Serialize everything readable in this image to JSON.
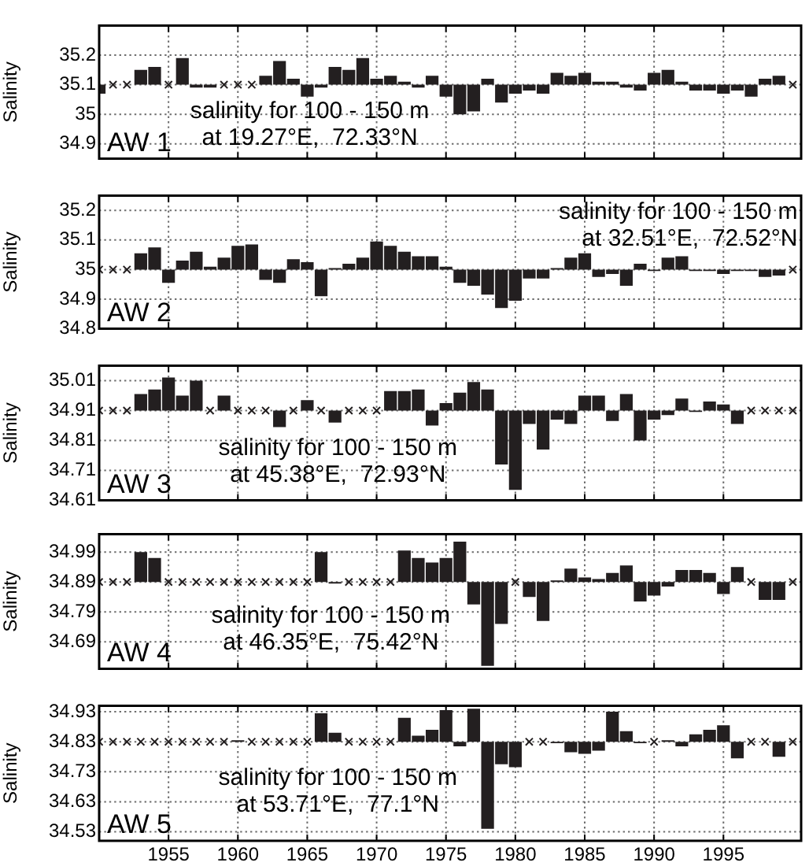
{
  "chart_data": [
    {
      "type": "bar",
      "ylabel": "Salinity",
      "xlim": [
        1950,
        2000.6
      ],
      "xticks": [
        1955,
        1960,
        1965,
        1970,
        1975,
        1980,
        1985,
        1990,
        1995
      ],
      "ylim": [
        34.85,
        35.3
      ],
      "yticks": [
        34.9,
        35,
        35.1,
        35.2
      ],
      "grid": true,
      "tick_labels": "y",
      "annotations": [
        "salinity for 100 - 150 m\nat 19.27°E,  72.33°N",
        "AW 1"
      ],
      "series": [
        {
          "color": "#231f20",
          "x": [
            1950,
            1953,
            1954,
            1956,
            1957,
            1958,
            1962,
            1963,
            1964,
            1965,
            1966,
            1967,
            1968,
            1969,
            1970,
            1971,
            1972,
            1973,
            1974,
            1975,
            1976,
            1977,
            1978,
            1979,
            1980,
            1981,
            1982,
            1983,
            1984,
            1985,
            1986,
            1987,
            1988,
            1989,
            1990,
            1991,
            1992,
            1993,
            1994,
            1995,
            1996,
            1997,
            1998,
            1999
          ],
          "base": [
            35.1,
            35.1,
            35.1,
            35.1,
            35.1,
            35.1,
            35.1,
            35.1,
            35.1,
            35.1,
            35.1,
            35.1,
            35.1,
            35.1,
            35.1,
            35.1,
            35.1,
            35.1,
            35.1,
            35.1,
            35.1,
            35.1,
            35.1,
            35.1,
            35.1,
            35.1,
            35.1,
            35.1,
            35.1,
            35.1,
            35.1,
            35.1,
            35.1,
            35.1,
            35.1,
            35.1,
            35.1,
            35.1,
            35.1,
            35.1,
            35.1,
            35.1,
            35.1,
            35.1
          ],
          "values": [
            -0.03,
            0.05,
            0.06,
            0.09,
            -0.01,
            -0.01,
            0.03,
            0.08,
            0.02,
            -0.04,
            -0.01,
            0.06,
            0.05,
            0.09,
            0.02,
            0.03,
            0.01,
            -0.01,
            0.03,
            -0.04,
            -0.1,
            -0.09,
            0.02,
            -0.06,
            -0.03,
            -0.02,
            -0.03,
            0.04,
            0.03,
            0.04,
            0.01,
            0.01,
            -0.01,
            -0.02,
            0.04,
            0.05,
            0.01,
            -0.02,
            -0.02,
            -0.03,
            -0.02,
            -0.04,
            0.02,
            0.03
          ]
        },
        {
          "type": "scatter",
          "color": "#231f20",
          "marker": "cross",
          "x": [
            1951,
            1952,
            1955,
            1959,
            1960,
            1961,
            2000
          ],
          "values": [
            35.1,
            35.1,
            35.1,
            35.1,
            35.1,
            35.1,
            35.1
          ]
        }
      ]
    },
    {
      "type": "bar",
      "ylabel": "Salinity",
      "xlim": [
        1950,
        2000.6
      ],
      "xticks": [
        1955,
        1960,
        1965,
        1970,
        1975,
        1980,
        1985,
        1990,
        1995
      ],
      "ylim": [
        34.8,
        35.25
      ],
      "yticks": [
        34.8,
        34.9,
        35,
        35.1,
        35.2
      ],
      "grid": true,
      "tick_labels": "y",
      "annotations": [
        "salinity for 100 - 150 m\nat 32.51°E,  72.52°N",
        "AW 2"
      ],
      "series": [
        {
          "color": "#231f20",
          "x": [
            1953,
            1954,
            1955,
            1956,
            1957,
            1958,
            1959,
            1960,
            1961,
            1962,
            1963,
            1964,
            1965,
            1966,
            1967,
            1968,
            1969,
            1970,
            1971,
            1972,
            1973,
            1974,
            1975,
            1976,
            1977,
            1978,
            1979,
            1980,
            1981,
            1982,
            1983,
            1984,
            1985,
            1986,
            1987,
            1988,
            1989,
            1990,
            1991,
            1992,
            1993,
            1994,
            1995,
            1996,
            1997,
            1998,
            1999
          ],
          "base": [
            35,
            35,
            35,
            35,
            35,
            35,
            35,
            35,
            35,
            35,
            35,
            35,
            35,
            35,
            35,
            35,
            35,
            35,
            35,
            35,
            35,
            35,
            35,
            35,
            35,
            35,
            35,
            35,
            35,
            35,
            35,
            35,
            35,
            35,
            35,
            35,
            35,
            35,
            35,
            35,
            35,
            35,
            35,
            35,
            35,
            35,
            35
          ],
          "values": [
            0.055,
            0.075,
            -0.045,
            0.03,
            0.06,
            0.01,
            0.04,
            0.08,
            0.085,
            -0.035,
            -0.045,
            0.035,
            0.025,
            -0.09,
            0.005,
            0.02,
            0.04,
            0.095,
            0.08,
            0.06,
            0.045,
            0.045,
            0.01,
            -0.045,
            -0.055,
            -0.085,
            -0.13,
            -0.105,
            -0.03,
            -0.03,
            0.005,
            0.04,
            0.055,
            -0.025,
            -0.015,
            -0.055,
            0.02,
            -0.005,
            0.04,
            0.045,
            -0.005,
            -0.005,
            -0.015,
            -0.005,
            -0.005,
            -0.025,
            -0.02
          ]
        },
        {
          "type": "scatter",
          "color": "#231f20",
          "marker": "cross",
          "x": [
            1950,
            1951,
            1952,
            2000
          ],
          "values": [
            35,
            35,
            35,
            35
          ]
        }
      ]
    },
    {
      "type": "bar",
      "ylabel": "Salinity",
      "xlim": [
        1950,
        2000.6
      ],
      "xticks": [
        1955,
        1960,
        1965,
        1970,
        1975,
        1980,
        1985,
        1990,
        1995
      ],
      "ylim": [
        34.61,
        35.06
      ],
      "yticks": [
        34.61,
        34.71,
        34.81,
        34.91,
        35.01
      ],
      "grid": true,
      "tick_labels": "y",
      "annotations": [
        "salinity for 100 - 150 m\nat 45.38°E,  72.93°N",
        "AW 3"
      ],
      "series": [
        {
          "color": "#231f20",
          "x": [
            1953,
            1954,
            1955,
            1956,
            1957,
            1959,
            1963,
            1965,
            1967,
            1971,
            1972,
            1973,
            1974,
            1975,
            1976,
            1977,
            1978,
            1979,
            1980,
            1981,
            1982,
            1983,
            1984,
            1985,
            1986,
            1987,
            1988,
            1989,
            1990,
            1991,
            1992,
            1993,
            1994,
            1995,
            1996
          ],
          "base": [
            34.91,
            34.91,
            34.91,
            34.91,
            34.91,
            34.91,
            34.91,
            34.91,
            34.91,
            34.91,
            34.91,
            34.91,
            34.91,
            34.91,
            34.91,
            34.91,
            34.91,
            34.91,
            34.91,
            34.91,
            34.91,
            34.91,
            34.91,
            34.91,
            34.91,
            34.91,
            34.91,
            34.91,
            34.91,
            34.91,
            34.91,
            34.91,
            34.91,
            34.91,
            34.91
          ],
          "values": [
            0.055,
            0.07,
            0.11,
            0.05,
            0.1,
            0.05,
            -0.055,
            0.035,
            -0.04,
            0.065,
            0.065,
            0.07,
            -0.05,
            0.025,
            0.06,
            0.095,
            0.07,
            -0.18,
            -0.265,
            -0.045,
            -0.13,
            -0.03,
            -0.045,
            0.05,
            0.05,
            -0.035,
            0.055,
            -0.1,
            -0.03,
            -0.015,
            0.04,
            -0.005,
            0.03,
            0.02,
            -0.045
          ]
        },
        {
          "type": "scatter",
          "color": "#231f20",
          "marker": "cross",
          "x": [
            1950,
            1951,
            1952,
            1958,
            1960,
            1961,
            1962,
            1964,
            1966,
            1968,
            1969,
            1970,
            1997,
            1998,
            1999,
            2000
          ],
          "values": [
            34.91,
            34.91,
            34.91,
            34.91,
            34.91,
            34.91,
            34.91,
            34.91,
            34.91,
            34.91,
            34.91,
            34.91,
            34.91,
            34.91,
            34.91,
            34.91
          ]
        }
      ]
    },
    {
      "type": "bar",
      "ylabel": "Salinity",
      "xlim": [
        1950,
        2000.6
      ],
      "xticks": [
        1955,
        1960,
        1965,
        1970,
        1975,
        1980,
        1985,
        1990,
        1995
      ],
      "ylim": [
        34.6,
        35.05
      ],
      "yticks": [
        34.69,
        34.79,
        34.89,
        34.99
      ],
      "grid": true,
      "tick_labels": "y",
      "annotations": [
        "salinity for 100 - 150 m\nat 46.35°E,  75.42°N",
        "AW 4"
      ],
      "series": [
        {
          "color": "#231f20",
          "x": [
            1953,
            1954,
            1966,
            1967,
            1972,
            1973,
            1974,
            1975,
            1976,
            1977,
            1978,
            1979,
            1981,
            1982,
            1983,
            1984,
            1985,
            1986,
            1987,
            1988,
            1989,
            1990,
            1991,
            1992,
            1993,
            1994,
            1995,
            1996,
            1998,
            1999
          ],
          "base": [
            34.89,
            34.89,
            34.89,
            34.89,
            34.89,
            34.89,
            34.89,
            34.89,
            34.89,
            34.89,
            34.89,
            34.89,
            34.89,
            34.89,
            34.89,
            34.89,
            34.89,
            34.89,
            34.89,
            34.89,
            34.89,
            34.89,
            34.89,
            34.89,
            34.89,
            34.89,
            34.89,
            34.89,
            34.89,
            34.89
          ],
          "values": [
            0.1,
            0.08,
            0.1,
            -0.005,
            0.105,
            0.08,
            0.065,
            0.08,
            0.135,
            -0.075,
            -0.28,
            -0.14,
            -0.05,
            -0.13,
            0.005,
            0.045,
            0.015,
            0.01,
            0.03,
            0.055,
            -0.065,
            -0.045,
            -0.015,
            0.04,
            0.04,
            0.03,
            -0.04,
            0.05,
            -0.06,
            -0.06
          ]
        },
        {
          "type": "scatter",
          "color": "#231f20",
          "marker": "cross",
          "x": [
            1950,
            1951,
            1952,
            1955,
            1956,
            1957,
            1958,
            1959,
            1960,
            1961,
            1962,
            1963,
            1964,
            1965,
            1968,
            1969,
            1970,
            1971,
            1980,
            1997,
            2000
          ],
          "values": [
            34.89,
            34.89,
            34.89,
            34.89,
            34.89,
            34.89,
            34.89,
            34.89,
            34.89,
            34.89,
            34.89,
            34.89,
            34.89,
            34.89,
            34.89,
            34.89,
            34.89,
            34.89,
            34.89,
            34.89,
            34.89
          ]
        }
      ]
    },
    {
      "type": "bar",
      "ylabel": "Salinity",
      "xlim": [
        1950,
        2000.6
      ],
      "xticks": [
        1955,
        1960,
        1965,
        1970,
        1975,
        1980,
        1985,
        1990,
        1995
      ],
      "ylim": [
        34.5,
        34.95
      ],
      "yticks": [
        34.53,
        34.63,
        34.73,
        34.83,
        34.93
      ],
      "grid": true,
      "annotations": [
        "salinity for 100 - 150 m\nat 53.71°E,  77.1°N",
        "AW 5"
      ],
      "series": [
        {
          "color": "#231f20",
          "x": [
            1960,
            1966,
            1967,
            1972,
            1973,
            1974,
            1975,
            1976,
            1977,
            1978,
            1979,
            1980,
            1983,
            1984,
            1985,
            1986,
            1987,
            1988,
            1989,
            1991,
            1992,
            1993,
            1994,
            1995,
            1996,
            1999
          ],
          "base": [
            34.83,
            34.83,
            34.83,
            34.83,
            34.83,
            34.83,
            34.83,
            34.83,
            34.83,
            34.83,
            34.83,
            34.83,
            34.83,
            34.83,
            34.83,
            34.83,
            34.83,
            34.83,
            34.83,
            34.83,
            34.83,
            34.83,
            34.83,
            34.83,
            34.83,
            34.83
          ],
          "values": [
            0.005,
            0.095,
            0.03,
            0.08,
            0.02,
            0.04,
            0.105,
            -0.015,
            0.11,
            -0.29,
            -0.075,
            -0.085,
            -0.005,
            -0.035,
            -0.04,
            -0.03,
            0.1,
            0.035,
            -0.005,
            0.005,
            -0.015,
            0.025,
            0.04,
            0.055,
            -0.055,
            -0.05
          ]
        },
        {
          "type": "scatter",
          "color": "#231f20",
          "marker": "cross",
          "x": [
            1950,
            1951,
            1952,
            1953,
            1954,
            1955,
            1956,
            1957,
            1958,
            1959,
            1961,
            1962,
            1963,
            1964,
            1965,
            1968,
            1969,
            1970,
            1971,
            1981,
            1982,
            1990,
            1997,
            1998,
            2000
          ],
          "values": [
            34.83,
            34.83,
            34.83,
            34.83,
            34.83,
            34.83,
            34.83,
            34.83,
            34.83,
            34.83,
            34.83,
            34.83,
            34.83,
            34.83,
            34.83,
            34.83,
            34.83,
            34.83,
            34.83,
            34.83,
            34.83,
            34.83,
            34.83,
            34.83,
            34.83
          ]
        }
      ]
    }
  ]
}
